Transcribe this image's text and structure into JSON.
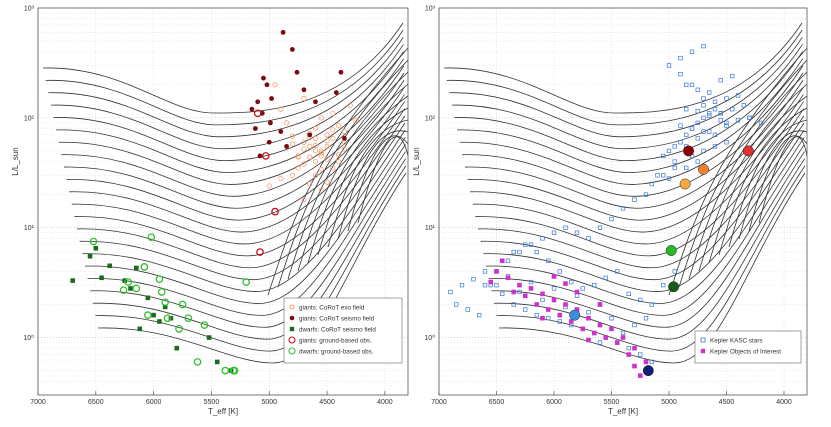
{
  "chart_data": [
    {
      "type": "scatter",
      "title": "",
      "xlabel": "T_eff [K]",
      "ylabel": "L/L_sun",
      "xlim": [
        7000,
        3800
      ],
      "ylim": [
        0.3,
        1000
      ],
      "yscale": "log",
      "grid": true,
      "xticks": [
        7000,
        6500,
        6000,
        5500,
        5000,
        4500,
        4000
      ],
      "xtick_labels": [
        "7000",
        "6500",
        "6000",
        "5500",
        "5000",
        "4500",
        "4000"
      ],
      "yticks": [
        1,
        10,
        100,
        1000
      ],
      "ytick_labels": [
        "10⁰",
        "10¹",
        "10²",
        "10³"
      ],
      "legend_position": "bottom-right",
      "series": [
        {
          "name": "giants: CoRoT exo field",
          "marker": "circle-open-small",
          "color": "#f4a070",
          "x": [
            4700,
            4650,
            4600,
            4550,
            4500,
            4450,
            4400,
            4600,
            4750,
            4800,
            4850,
            4900,
            4700,
            4550,
            4450,
            4350,
            4300,
            4650,
            4750,
            4500,
            4400,
            4600,
            4550,
            4700,
            4800,
            4500,
            4650,
            4350,
            4250,
            4900,
            5000,
            4950,
            4600,
            4450,
            4550,
            4700,
            4500,
            4400,
            4600,
            4650,
            4750,
            4550,
            4500,
            4600,
            4700,
            4800,
            4350,
            4450,
            4550,
            4650
          ],
          "y": [
            60,
            55,
            50,
            45,
            70,
            65,
            40,
            80,
            35,
            30,
            90,
            120,
            150,
            100,
            110,
            75,
            130,
            25,
            45,
            55,
            85,
            65,
            48,
            38,
            58,
            42,
            72,
            52,
            95,
            28,
            24,
            200,
            30,
            35,
            22,
            18,
            62,
            46,
            56,
            66,
            44,
            34,
            26,
            40,
            52,
            68,
            60,
            78,
            50,
            44
          ]
        },
        {
          "name": "giants: CoRoT seismo field",
          "marker": "circle-filled",
          "color": "#7a0a10",
          "x": [
            4880,
            4800,
            5050,
            5020,
            4980,
            5100,
            5150,
            5060,
            4990,
            5120,
            4760,
            4700,
            4380,
            4420,
            4600,
            5000,
            4850,
            4650,
            4350,
            5080,
            4900
          ],
          "y": [
            600,
            420,
            230,
            200,
            150,
            140,
            120,
            110,
            90,
            80,
            260,
            180,
            260,
            170,
            140,
            60,
            55,
            70,
            65,
            45,
            75
          ]
        },
        {
          "name": "dwarfs: CoRoT seismo field",
          "marker": "square-filled",
          "color": "#1e6b1e",
          "x": [
            6500,
            6550,
            6380,
            6150,
            6250,
            6200,
            6050,
            6000,
            5950,
            6120,
            5850,
            5800,
            5900,
            5520,
            5450,
            5330,
            6450,
            6700
          ],
          "y": [
            6.5,
            5.5,
            4.5,
            4.3,
            3.3,
            2.8,
            2.3,
            1.6,
            1.4,
            1.2,
            1.5,
            0.8,
            1.9,
            1.0,
            0.6,
            0.5,
            3.5,
            3.3
          ]
        },
        {
          "name": "giants: ground-based obs.",
          "marker": "circle-open-large",
          "color": "#c0101a",
          "x": [
            5100,
            5030,
            5080,
            4950
          ],
          "y": [
            110,
            45,
            6,
            14
          ]
        },
        {
          "name": "dwarfs: ground-based obs.",
          "marker": "circle-open-large",
          "color": "#2ec02e",
          "x": [
            6520,
            6020,
            6080,
            6220,
            5950,
            6150,
            5930,
            6260,
            5750,
            5900,
            6050,
            5700,
            5560,
            5620,
            5380,
            5310,
            5300,
            5200,
            5880,
            5780
          ],
          "y": [
            7.5,
            8.2,
            4.4,
            3.2,
            3.4,
            2.8,
            2.6,
            2.7,
            2.0,
            2.1,
            1.6,
            1.5,
            1.3,
            0.6,
            0.5,
            0.5,
            0.5,
            3.2,
            1.5,
            1.2
          ]
        }
      ]
    },
    {
      "type": "scatter",
      "title": "",
      "xlabel": "T_eff [K]",
      "ylabel": "L/L_sun",
      "xlim": [
        7000,
        3800
      ],
      "ylim": [
        0.3,
        1000
      ],
      "yscale": "log",
      "grid": true,
      "xticks": [
        7000,
        6500,
        6000,
        5500,
        5000,
        4500,
        4000
      ],
      "xtick_labels": [
        "7000",
        "6500",
        "6000",
        "5500",
        "5000",
        "4500",
        "4000"
      ],
      "yticks": [
        1,
        10,
        100,
        1000
      ],
      "ytick_labels": [
        "10⁰",
        "10¹",
        "10²",
        "10³"
      ],
      "legend_position": "bottom-right",
      "series": [
        {
          "name": "Kepler KASC stars",
          "marker": "square-open",
          "color": "#3a78d8",
          "x": [
            4800,
            4750,
            4700,
            4650,
            4600,
            4550,
            4500,
            4850,
            4900,
            4950,
            5000,
            5050,
            4700,
            4600,
            4500,
            4400,
            4300,
            4200,
            4650,
            4750,
            4850,
            4950,
            4550,
            4450,
            4350,
            4800,
            4900,
            5100,
            5150,
            5200,
            5300,
            5400,
            5500,
            5600,
            5700,
            5800,
            5900,
            6000,
            6100,
            6200,
            6300,
            6400,
            6500,
            6600,
            5450,
            5550,
            5650,
            5750,
            5850,
            5950,
            6050,
            6150,
            6250,
            6350,
            6450,
            5350,
            5250,
            5150,
            5050,
            4950,
            4850,
            4750,
            4800,
            4700,
            4600,
            4500,
            4700,
            4650,
            4750,
            4850,
            4550,
            4450,
            4950,
            5050,
            5000,
            4600,
            4700,
            4800,
            4900,
            4500,
            4400,
            4300,
            4650,
            4550,
            4750,
            4850,
            5000,
            4900,
            4800,
            4700,
            6550,
            6450,
            6350,
            6250,
            6150,
            6050,
            5950,
            5850,
            5750,
            5650,
            5550,
            5450,
            5350,
            5250,
            5150,
            5500,
            5700,
            5900,
            6100,
            6300,
            6500,
            5600,
            5800,
            6000,
            6200,
            6400,
            6600,
            6700,
            6800,
            6900,
            6850,
            6750,
            6650,
            5600,
            5400,
            5300,
            5200
          ],
          "y": [
            80,
            90,
            100,
            110,
            120,
            95,
            85,
            70,
            60,
            55,
            50,
            45,
            130,
            140,
            150,
            160,
            100,
            90,
            75,
            65,
            55,
            40,
            110,
            120,
            130,
            200,
            250,
            30,
            25,
            20,
            18,
            15,
            12,
            10,
            8,
            9,
            10,
            9,
            8,
            7,
            6,
            5,
            4,
            3,
            4,
            3.5,
            3,
            2.8,
            3.2,
            4,
            5,
            6,
            7,
            6,
            5,
            2.5,
            2.2,
            2,
            3,
            4,
            35,
            40,
            45,
            50,
            55,
            60,
            150,
            170,
            180,
            200,
            220,
            240,
            35,
            30,
            28,
            70,
            75,
            80,
            85,
            90,
            95,
            100,
            105,
            110,
            115,
            120,
            300,
            350,
            400,
            450,
            3,
            2.5,
            2,
            1.8,
            1.6,
            1.5,
            1.4,
            1.3,
            1.2,
            1.1,
            1,
            0.9,
            0.8,
            0.7,
            0.6,
            1.5,
            1.7,
            1.9,
            2.2,
            2.6,
            3,
            2,
            2.4,
            2.8,
            3.2,
            3.6,
            4,
            3.4,
            3,
            2.6,
            2,
            1.8,
            1.6,
            0.9,
            1.1,
            1.3,
            1.5
          ]
        },
        {
          "name": "Kepler Objects of Interest",
          "marker": "square-filled",
          "color": "#cc33cc",
          "x": [
            6500,
            6400,
            6300,
            6200,
            6100,
            6000,
            5900,
            5800,
            5700,
            5600,
            5500,
            5400,
            5300,
            5200,
            6350,
            6250,
            6150,
            6050,
            5950,
            5850,
            5750,
            5650,
            5550,
            5450,
            5350,
            6450,
            6550,
            5250,
            5300,
            5800,
            5900,
            6000,
            6100,
            5600,
            5700
          ],
          "y": [
            4,
            3.5,
            3,
            2.8,
            2.5,
            2.2,
            2,
            1.8,
            1.5,
            1.3,
            1.2,
            1,
            0.8,
            0.6,
            2.6,
            2.4,
            2,
            1.8,
            1.6,
            1.4,
            1.2,
            1.1,
            1,
            0.9,
            0.7,
            5,
            3.2,
            0.45,
            0.55,
            2.6,
            3.1,
            3.6,
            1.5,
            2,
            0.95
          ]
        },
        {
          "name": "",
          "marker": "circle-filled-large",
          "colors": [
            "#8b0000",
            "#e23030",
            "#f08030",
            "#f6a840",
            "#26b826",
            "#1a5a1a",
            "#3a8ee0",
            "#101e78"
          ],
          "x": [
            4830,
            4310,
            4700,
            4860,
            4980,
            4960,
            5820,
            5180
          ],
          "y": [
            50,
            50,
            34,
            25,
            6.2,
            2.9,
            1.6,
            0.5
          ]
        }
      ]
    }
  ],
  "tracks_note_colors": {
    "track": "#333333",
    "grid": "#bbbbbb"
  }
}
